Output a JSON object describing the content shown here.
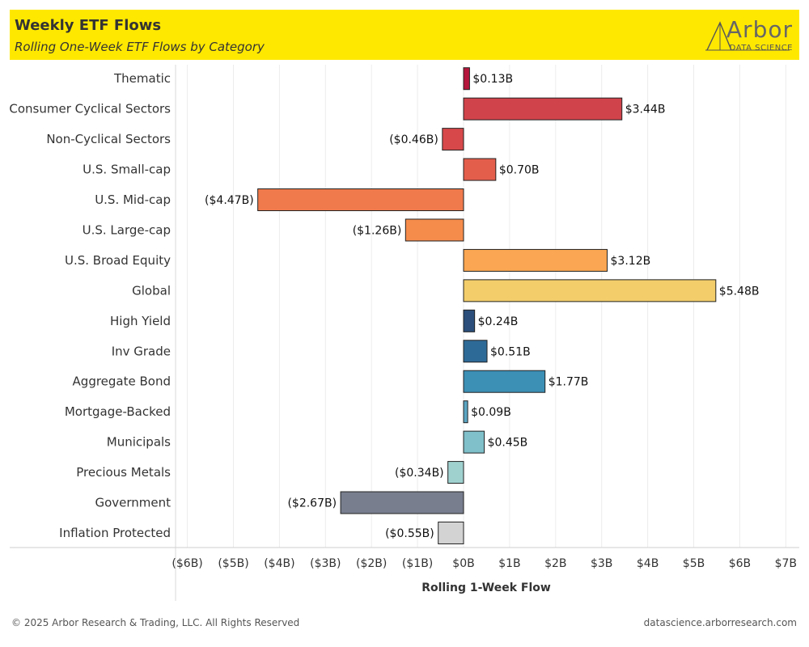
{
  "header": {
    "title": "Weekly ETF Flows",
    "subtitle": "Rolling One-Week ETF Flows by Category",
    "logo_word": "Arbor",
    "logo_sub": "DATA SCIENCE",
    "background_color": "#ffe800"
  },
  "footer": {
    "copyright": "© 2025 Arbor Research & Trading, LLC. All Rights Reserved",
    "url": "datascience.arborresearch.com"
  },
  "chart_data": {
    "type": "bar",
    "orientation": "horizontal",
    "title": "Weekly ETF Flows",
    "subtitle": "Rolling One-Week ETF Flows by Category",
    "xlabel": "Rolling 1-Week Flow",
    "ylabel": "",
    "unit": "B",
    "xlim": [
      -6.5,
      7.2
    ],
    "grid": true,
    "ticks": [
      {
        "value": -6,
        "label": "($6B)"
      },
      {
        "value": -5,
        "label": "($5B)"
      },
      {
        "value": -4,
        "label": "($4B)"
      },
      {
        "value": -3,
        "label": "($3B)"
      },
      {
        "value": -2,
        "label": "($2B)"
      },
      {
        "value": -1,
        "label": "($1B)"
      },
      {
        "value": 0,
        "label": "$0B"
      },
      {
        "value": 1,
        "label": "$1B"
      },
      {
        "value": 2,
        "label": "$2B"
      },
      {
        "value": 3,
        "label": "$3B"
      },
      {
        "value": 4,
        "label": "$4B"
      },
      {
        "value": 5,
        "label": "$5B"
      },
      {
        "value": 6,
        "label": "$6B"
      },
      {
        "value": 7,
        "label": "$7B"
      }
    ],
    "bars": [
      {
        "category": "Thematic",
        "value": 0.13,
        "label": "$0.13B",
        "color": "#b5163b"
      },
      {
        "category": "Consumer Cyclical Sectors",
        "value": 3.44,
        "label": "$3.44B",
        "color": "#d1434a"
      },
      {
        "category": "Non-Cyclical Sectors",
        "value": -0.46,
        "label": "($0.46B)",
        "color": "#d7484a"
      },
      {
        "category": "U.S. Small-cap",
        "value": 0.7,
        "label": "$0.70B",
        "color": "#e45e4c"
      },
      {
        "category": "U.S. Mid-cap",
        "value": -4.47,
        "label": "($4.47B)",
        "color": "#f07a4c"
      },
      {
        "category": "U.S. Large-cap",
        "value": -1.26,
        "label": "($1.26B)",
        "color": "#f68c4c"
      },
      {
        "category": "U.S. Broad Equity",
        "value": 3.12,
        "label": "$3.12B",
        "color": "#faa652"
      },
      {
        "category": "Global",
        "value": 5.48,
        "label": "$5.48B",
        "color": "#f3cd6a"
      },
      {
        "category": "High Yield",
        "value": 0.24,
        "label": "$0.24B",
        "color": "#2b4f7a"
      },
      {
        "category": "Inv Grade",
        "value": 0.51,
        "label": "$0.51B",
        "color": "#2e6a97"
      },
      {
        "category": "Aggregate Bond",
        "value": 1.77,
        "label": "$1.77B",
        "color": "#3c8fb5"
      },
      {
        "category": "Mortgage-Backed",
        "value": 0.09,
        "label": "$0.09B",
        "color": "#5ba6c3"
      },
      {
        "category": "Municipals",
        "value": 0.45,
        "label": "$0.45B",
        "color": "#7fc0ca"
      },
      {
        "category": "Precious Metals",
        "value": -0.34,
        "label": "($0.34B)",
        "color": "#9fd1cf"
      },
      {
        "category": "Government",
        "value": -2.67,
        "label": "($2.67B)",
        "color": "#787e8e"
      },
      {
        "category": "Inflation Protected",
        "value": -0.55,
        "label": "($0.55B)",
        "color": "#d3d3d3"
      }
    ]
  }
}
